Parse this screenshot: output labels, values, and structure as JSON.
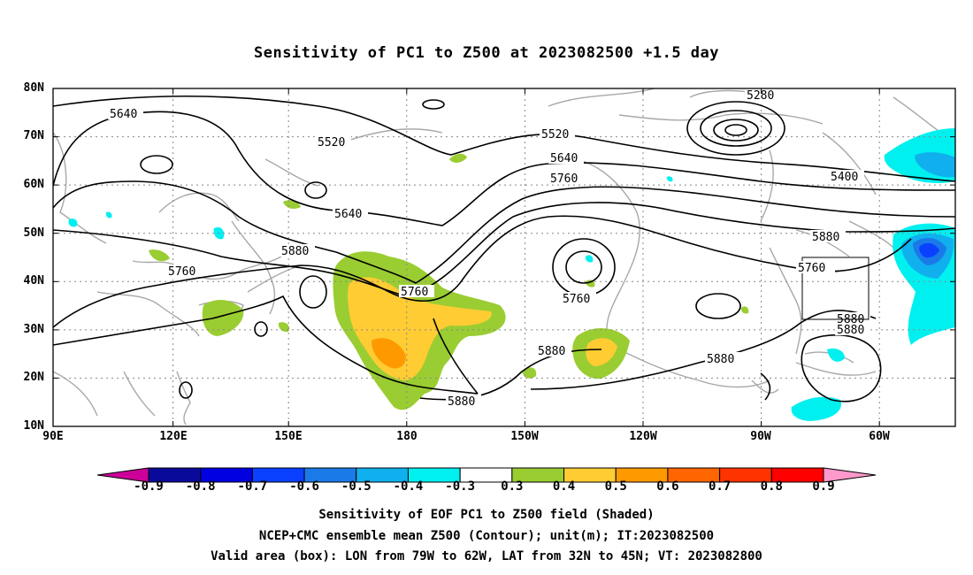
{
  "title": "Sensitivity of PC1 to Z500 at 2023082500 +1.5 day",
  "lat_labels": [
    "80N",
    "70N",
    "60N",
    "50N",
    "40N",
    "30N",
    "20N",
    "10N"
  ],
  "lon_labels": [
    "90E",
    "120E",
    "150E",
    "180",
    "150W",
    "120W",
    "90W",
    "60W"
  ],
  "contour_labels": [
    "5640",
    "5520",
    "5520",
    "5280",
    "5400",
    "5640",
    "5760",
    "5640",
    "5880",
    "5760",
    "5760",
    "5760",
    "5880",
    "5880",
    "5880",
    "5880",
    "5880",
    "5880"
  ],
  "colorbar": {
    "labels": [
      "-0.9",
      "-0.8",
      "-0.7",
      "-0.6",
      "-0.5",
      "-0.4",
      "-0.3",
      "0.3",
      "0.4",
      "0.5",
      "0.6",
      "0.7",
      "0.8",
      "0.9"
    ],
    "colors": [
      "#0a0a9a",
      "#0000e0",
      "#0a40ff",
      "#1a7ae8",
      "#10b0ee",
      "#00f0f0",
      "#ffffff",
      "#9acd32",
      "#ffcc33",
      "#ff9900",
      "#ff6600",
      "#ff3300",
      "#ff0000"
    ],
    "low_end_color": "#cc0099",
    "high_end_color": "#ff99cc"
  },
  "captions": [
    "Sensitivity of EOF PC1 to Z500 field (Shaded)",
    "NCEP+CMC ensemble mean Z500 (Contour); unit(m); IT:2023082500",
    "Valid area (box): LON from 79W to 62W, LAT from 32N to 45N; VT: 2023082800"
  ],
  "colors": {
    "contour": "#000000",
    "coastline": "#a8a8a8",
    "grid": "#888888"
  }
}
